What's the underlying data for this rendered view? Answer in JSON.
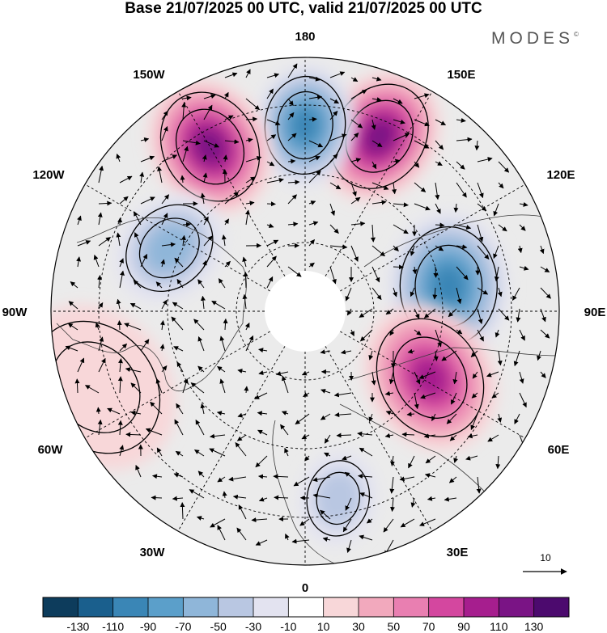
{
  "title": "Base 21/07/2025 00 UTC, valid 21/07/2025 00 UTC",
  "brand": "MODES",
  "brand_mark": "©",
  "map": {
    "projection": "north-polar-stereographic",
    "longitude_labels": {
      "lon_0": "0",
      "lon_30e": "30E",
      "lon_60e": "60E",
      "lon_90e": "90E",
      "lon_120e": "120E",
      "lon_150e": "150E",
      "lon_180": "180",
      "lon_150w": "150W",
      "lon_120w": "120W",
      "lon_90w": "90W",
      "lon_60w": "60W",
      "lon_30w": "30W"
    },
    "field_centers": [
      {
        "lon": 157,
        "value": 120,
        "sign": "positive"
      },
      {
        "lon": 180,
        "value": -100,
        "sign": "negative"
      },
      {
        "lon": -150,
        "value": 115,
        "sign": "positive"
      },
      {
        "lon": 100,
        "value": -90,
        "sign": "negative"
      },
      {
        "lon": 62,
        "value": 90,
        "sign": "positive"
      },
      {
        "lon": -115,
        "value": -60,
        "sign": "negative"
      },
      {
        "lon": 10,
        "value": -40,
        "sign": "negative"
      },
      {
        "lon": -70,
        "value": 20,
        "sign": "positive"
      }
    ]
  },
  "vector_key": {
    "label": "10"
  },
  "colorbar": {
    "levels": [
      "-130",
      "-110",
      "-90",
      "-70",
      "-50",
      "-30",
      "-10",
      "10",
      "30",
      "50",
      "70",
      "90",
      "110",
      "130"
    ],
    "colors": [
      "#0d3c5c",
      "#1a5f8d",
      "#3a86b6",
      "#5b9fca",
      "#8fb6d9",
      "#b9c7e2",
      "#e3e3f0",
      "#ffffff",
      "#f8d7d9",
      "#f2a9bd",
      "#e97fb1",
      "#d4479f",
      "#a61e8e",
      "#7a1485",
      "#4c0a6e"
    ]
  }
}
